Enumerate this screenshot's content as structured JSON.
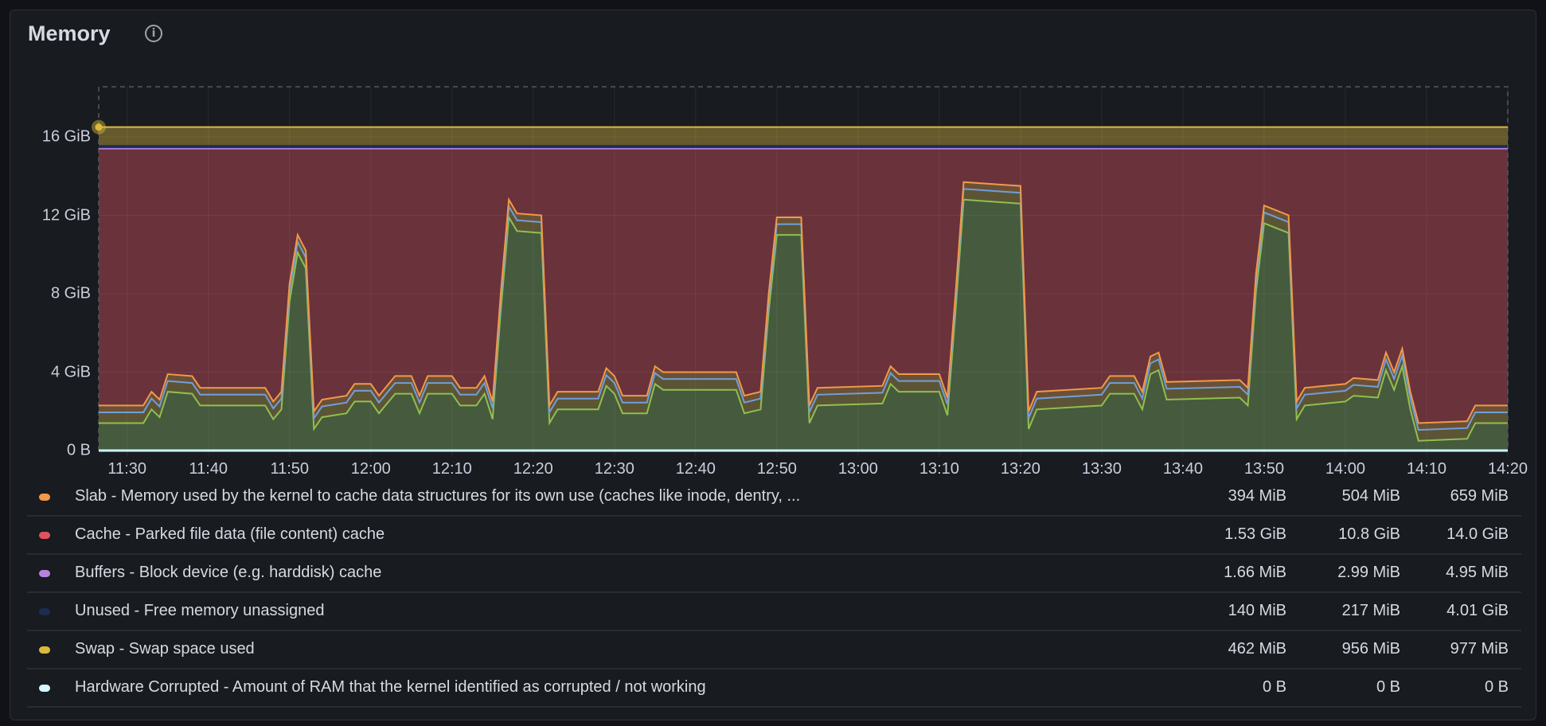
{
  "panel": {
    "title": "Memory",
    "info_icon": "info-circle-icon"
  },
  "chart_data": {
    "type": "area",
    "stacked": true,
    "title": "Memory",
    "ylim": [
      0,
      18.56
    ],
    "y_unit": "GiB",
    "y_ticks": [
      {
        "v": 0,
        "label": "0 B"
      },
      {
        "v": 4,
        "label": "4 GiB"
      },
      {
        "v": 8,
        "label": "8 GiB"
      },
      {
        "v": 12,
        "label": "12 GiB"
      },
      {
        "v": 16,
        "label": "16 GiB"
      }
    ],
    "x_range": [
      "11:26.5",
      "14:20"
    ],
    "x_ticks": [
      "11:30",
      "11:40",
      "11:50",
      "12:00",
      "12:10",
      "12:20",
      "12:30",
      "12:40",
      "12:50",
      "13:00",
      "13:10",
      "13:20",
      "13:30",
      "13:40",
      "13:50",
      "14:00",
      "14:10",
      "14:20"
    ],
    "grid": true,
    "legend_placement": "bottom",
    "x": [
      "11:26.5",
      "11:32",
      "11:33",
      "11:34",
      "11:35",
      "11:38",
      "11:39",
      "11:47",
      "11:48",
      "11:49",
      "11:50",
      "11:51",
      "11:52",
      "11:53",
      "11:54",
      "11:57",
      "11:58",
      "12:00",
      "12:01",
      "12:03",
      "12:05",
      "12:06",
      "12:07",
      "12:10",
      "12:11",
      "12:13",
      "12:14",
      "12:15",
      "12:16",
      "12:17",
      "12:18",
      "12:21",
      "12:22",
      "12:23",
      "12:28",
      "12:29",
      "12:30",
      "12:31",
      "12:34",
      "12:35",
      "12:36",
      "12:45",
      "12:46",
      "12:48",
      "12:49",
      "12:50",
      "12:53",
      "12:54",
      "12:55",
      "13:03",
      "13:04",
      "13:05",
      "13:10",
      "13:11",
      "13:12",
      "13:13",
      "13:20",
      "13:21",
      "13:22",
      "13:30",
      "13:31",
      "13:34",
      "13:35",
      "13:36",
      "13:37",
      "13:38",
      "13:47",
      "13:48",
      "13:49",
      "13:50",
      "13:53",
      "13:54",
      "13:55",
      "14:00",
      "14:01",
      "14:04",
      "14:05",
      "14:06",
      "14:07",
      "14:08",
      "14:09",
      "14:15",
      "14:16",
      "14:20"
    ],
    "top_of_used": [
      2.3,
      2.3,
      3.0,
      2.6,
      3.9,
      3.8,
      3.2,
      3.2,
      2.5,
      3.0,
      8.5,
      11.0,
      10.2,
      2.0,
      2.6,
      2.8,
      3.4,
      3.4,
      2.8,
      3.8,
      3.8,
      2.8,
      3.8,
      3.8,
      3.2,
      3.2,
      3.8,
      2.5,
      8.0,
      12.8,
      12.1,
      12.0,
      2.3,
      3.0,
      3.0,
      4.2,
      3.8,
      2.8,
      2.8,
      4.3,
      4.0,
      4.0,
      2.8,
      3.0,
      8.0,
      11.9,
      11.9,
      2.3,
      3.2,
      3.3,
      4.3,
      3.9,
      3.9,
      2.7,
      8.0,
      13.7,
      13.5,
      2.0,
      3.0,
      3.2,
      3.8,
      3.8,
      3.0,
      4.8,
      5.0,
      3.5,
      3.6,
      3.2,
      9.0,
      12.5,
      12.0,
      2.5,
      3.2,
      3.4,
      3.7,
      3.6,
      5.0,
      4.0,
      5.2,
      3.0,
      1.4,
      1.5,
      2.3,
      2.3
    ],
    "series": [
      {
        "key": "base",
        "color": "#8fc04f",
        "fill": "#465a3e",
        "offset_from_top": 0.9
      },
      {
        "key": "mid",
        "color": "#6e9fdc",
        "fill": "#5b5535",
        "band": 0.55
      },
      {
        "name": "Slab - Memory used by the kernel to cache data structures for its own use (caches like inode, dentry, ...",
        "color": "#f2994a",
        "fill": "#6b5036",
        "band": 0.35
      },
      {
        "name": "Cache - Parked file data (file content) cache",
        "color": "#e0525c",
        "fill": "#6a323a",
        "stack_top": 15.4
      },
      {
        "name": "Buffers - Block device (e.g. harddisk) cache",
        "color": "#a77be0",
        "band": 0.003
      },
      {
        "name": "Unused - Free memory unassigned",
        "color": "#1f3561",
        "fill": "#16203a",
        "band": 0.15
      },
      {
        "name": "Swap - Swap space used",
        "color": "#dcb93b",
        "fill": "#665a2d",
        "band": 0.95
      },
      {
        "name": "Hardware Corrupted - Amount of RAM that the kernel identified as corrupted / not working",
        "color": "#c8f5ff",
        "band": 0
      }
    ]
  },
  "legend": [
    {
      "label": "Slab - Memory used by the kernel to cache data structures for its own use (caches like inode, dentry, ...",
      "color": "#f2994a",
      "values": [
        "394 MiB",
        "504 MiB",
        "659 MiB"
      ]
    },
    {
      "label": "Cache - Parked file data (file content) cache",
      "color": "#e0525c",
      "values": [
        "1.53 GiB",
        "10.8 GiB",
        "14.0 GiB"
      ]
    },
    {
      "label": "Buffers - Block device (e.g. harddisk) cache",
      "color": "#b583dd",
      "values": [
        "1.66 MiB",
        "2.99 MiB",
        "4.95 MiB"
      ]
    },
    {
      "label": "Unused - Free memory unassigned",
      "color": "#1c2d50",
      "values": [
        "140 MiB",
        "217 MiB",
        "4.01 GiB"
      ]
    },
    {
      "label": "Swap - Swap space used",
      "color": "#dcb93b",
      "values": [
        "462 MiB",
        "956 MiB",
        "977 MiB"
      ]
    },
    {
      "label": "Hardware Corrupted - Amount of RAM that the kernel identified as corrupted / not working",
      "color": "#d4f8ff",
      "values": [
        "0 B",
        "0 B",
        "0 B"
      ]
    }
  ]
}
